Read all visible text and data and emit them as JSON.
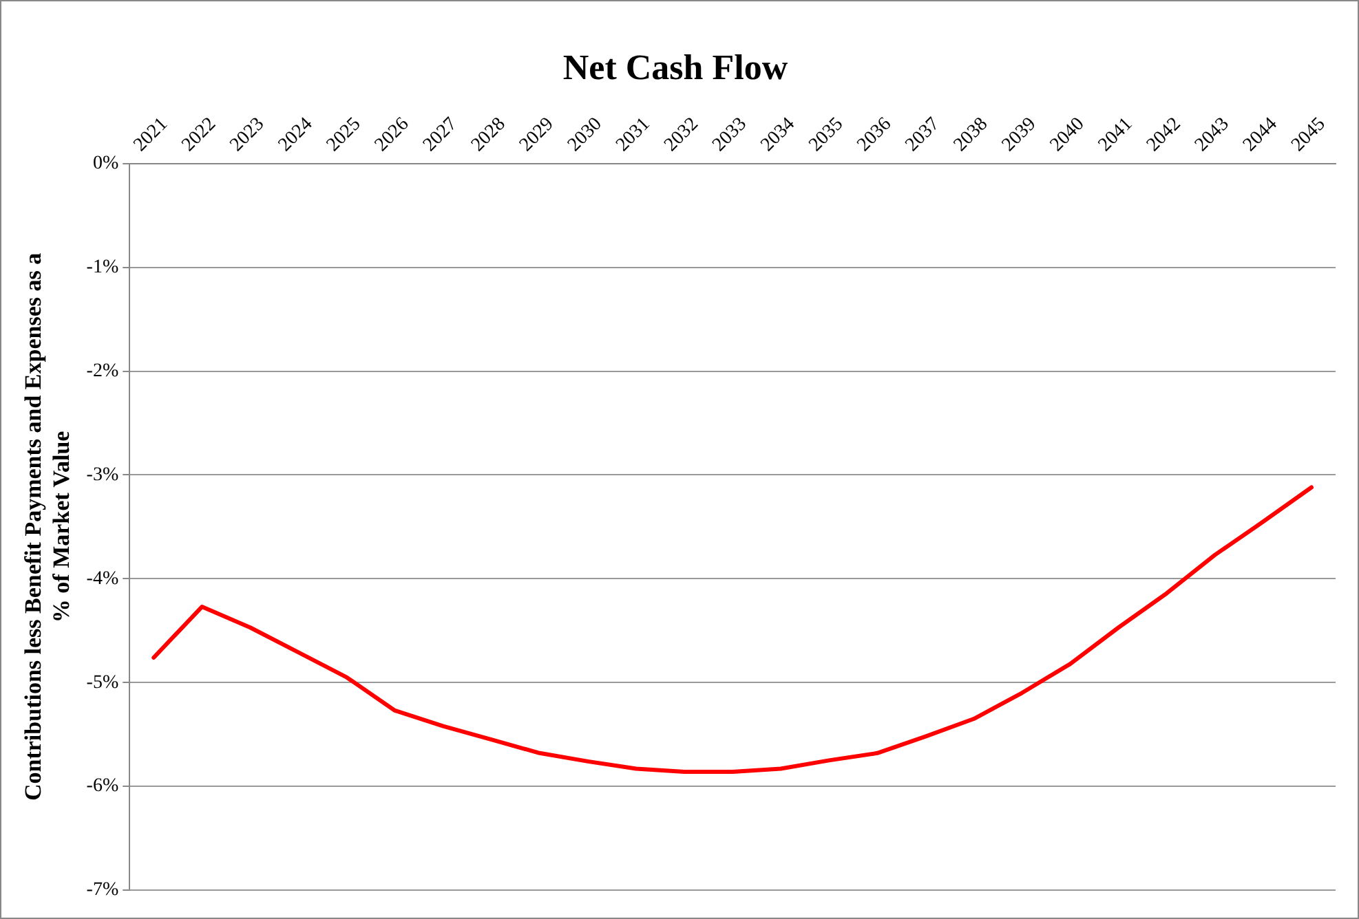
{
  "chart_data": {
    "type": "line",
    "title": "Net Cash Flow",
    "ylabel": "Contributions less Benefit Payments and Expenses as a % of Market Value",
    "categories": [
      "2021",
      "2022",
      "2023",
      "2024",
      "2025",
      "2026",
      "2027",
      "2028",
      "2029",
      "2030",
      "2031",
      "2032",
      "2033",
      "2034",
      "2035",
      "2036",
      "2037",
      "2038",
      "2039",
      "2040",
      "2041",
      "2042",
      "2043",
      "2044",
      "2045"
    ],
    "series": [
      {
        "color": "#ff0000",
        "values": [
          -4.76,
          -4.27,
          -4.47,
          -4.71,
          -4.95,
          -5.27,
          -5.42,
          -5.55,
          -5.68,
          -5.76,
          -5.83,
          -5.86,
          -5.86,
          -5.83,
          -5.75,
          -5.68,
          -5.52,
          -5.35,
          -5.1,
          -4.82,
          -4.47,
          -4.14,
          -3.77,
          -3.45,
          -3.12
        ]
      }
    ],
    "ylim": [
      -7,
      0
    ],
    "yticks": [
      {
        "value": 0,
        "label": "0%"
      },
      {
        "value": -1,
        "label": "-1%"
      },
      {
        "value": -2,
        "label": "-2%"
      },
      {
        "value": -3,
        "label": "-3%"
      },
      {
        "value": -4,
        "label": "-4%"
      },
      {
        "value": -5,
        "label": "-5%"
      },
      {
        "value": -6,
        "label": "-6%"
      },
      {
        "value": -7,
        "label": "-7%"
      }
    ],
    "grid": "y",
    "legend": false,
    "marker": "none",
    "line_style": "solid"
  }
}
